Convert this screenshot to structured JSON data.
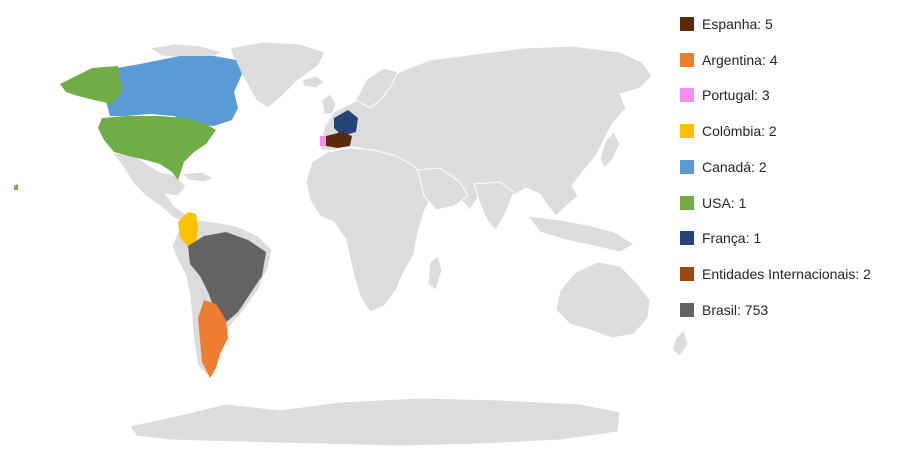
{
  "legend": [
    {
      "label": "Espanha: 5",
      "country": "espanha",
      "color": "#5b2a0b"
    },
    {
      "label": "Argentina: 4",
      "country": "argentina",
      "color": "#ed7d31"
    },
    {
      "label": "Portugal: 3",
      "country": "portugal",
      "color": "#f58ef0"
    },
    {
      "label": "Colômbia: 2",
      "country": "colombia",
      "color": "#ffc000"
    },
    {
      "label": "Canadá: 2",
      "country": "canada",
      "color": "#5b9bd5"
    },
    {
      "label": "USA: 1",
      "country": "usa",
      "color": "#70ad47"
    },
    {
      "label": "França: 1",
      "country": "franca",
      "color": "#264478"
    },
    {
      "label": "Entidades Internacionais: 2",
      "country": "entidades-internacionais",
      "color": "#9e480e"
    },
    {
      "label": "Brasil: 753",
      "country": "brasil",
      "color": "#636363"
    }
  ],
  "land_color": "#dcdcdc"
}
